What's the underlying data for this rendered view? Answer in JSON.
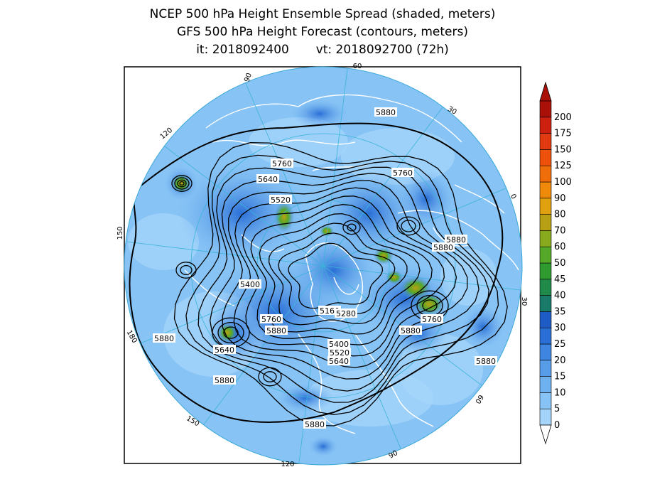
{
  "title": {
    "line1": "NCEP 500 hPa Height Ensemble Spread (shaded, meters)",
    "line2": "GFS 500 hPa Height Forecast (contours, meters)",
    "init_label": "it: 2018092400",
    "valid_label": "vt: 2018092700 (72h)"
  },
  "colorbar": {
    "levels": [
      "0",
      "5",
      "10",
      "15",
      "20",
      "25",
      "30",
      "35",
      "40",
      "45",
      "50",
      "60",
      "70",
      "80",
      "90",
      "100",
      "125",
      "150",
      "175",
      "200"
    ],
    "colors": [
      "#a4d4fa",
      "#87c3f5",
      "#6fb0ef",
      "#579ce8",
      "#3f86e0",
      "#2a6fd6",
      "#1f5bc4",
      "#1a7a6a",
      "#1f8a4a",
      "#2f9a2f",
      "#55a828",
      "#88a81e",
      "#b8a014",
      "#e0a010",
      "#f08a0a",
      "#f06e0a",
      "#ec520c",
      "#e03a10",
      "#cc2010",
      "#a81008"
    ]
  },
  "contour_labels": [
    "5880",
    "5760",
    "5640",
    "5520",
    "5400",
    "5280",
    "5160"
  ],
  "map_labels": [
    {
      "text": "5880"
    },
    {
      "text": "5760"
    },
    {
      "text": "5760"
    },
    {
      "text": "5640"
    },
    {
      "text": "5520"
    },
    {
      "text": "5880"
    },
    {
      "text": "5880"
    },
    {
      "text": "5400"
    },
    {
      "text": "5760"
    },
    {
      "text": "5880"
    },
    {
      "text": "5160"
    },
    {
      "text": "5280"
    },
    {
      "text": "5760"
    },
    {
      "text": "5880"
    },
    {
      "text": "5400"
    },
    {
      "text": "5520"
    },
    {
      "text": "5640"
    },
    {
      "text": "5640"
    },
    {
      "text": "5880"
    },
    {
      "text": "5880"
    },
    {
      "text": "5880"
    },
    {
      "text": "5880"
    }
  ],
  "longitude_labels": [
    "90",
    "60",
    "30",
    "0",
    "-30",
    "-60",
    "-90",
    "-120",
    "-150",
    "180",
    "150",
    "120"
  ]
}
